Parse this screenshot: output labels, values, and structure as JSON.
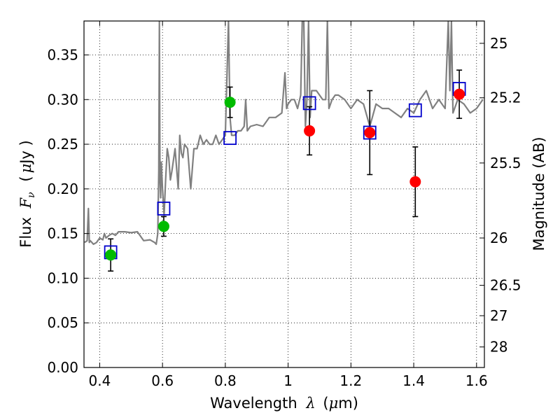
{
  "chart_data": {
    "type": "scatter",
    "title": "",
    "xlabel": {
      "prefix": "Wavelength",
      "symbol": "λ",
      "unit_open": "(",
      "unit_mu": "μ",
      "unit_rest": "m)"
    },
    "ylabel": {
      "prefix": "Flux",
      "symbol_main": "F",
      "symbol_sub": "ν",
      "unit_open": "(",
      "unit_mu": "μ",
      "unit_rest": "Jy )"
    },
    "y2label": "Magnitude (AB)",
    "xlim": [
      0.35,
      1.625
    ],
    "ylim": [
      0.0,
      0.388
    ],
    "grid": true,
    "x_ticks": [
      {
        "value": 0.4,
        "label": "0.4"
      },
      {
        "value": 0.6,
        "label": "0.6"
      },
      {
        "value": 0.8,
        "label": "0.8"
      },
      {
        "value": 1.0,
        "label": "1"
      },
      {
        "value": 1.2,
        "label": "1.2"
      },
      {
        "value": 1.4,
        "label": "1.4"
      },
      {
        "value": 1.6,
        "label": "1.6"
      }
    ],
    "y_ticks": [
      {
        "value": 0.0,
        "label": "0.00"
      },
      {
        "value": 0.05,
        "label": "0.05"
      },
      {
        "value": 0.1,
        "label": "0.10"
      },
      {
        "value": 0.15,
        "label": "0.15"
      },
      {
        "value": 0.2,
        "label": "0.20"
      },
      {
        "value": 0.25,
        "label": "0.25"
      },
      {
        "value": 0.3,
        "label": "0.30"
      },
      {
        "value": 0.35,
        "label": "0.35"
      }
    ],
    "y2_ticks": [
      {
        "flux": 0.363,
        "label": "25"
      },
      {
        "flux": 0.302,
        "label": "25.2"
      },
      {
        "flux": 0.229,
        "label": "25.5"
      },
      {
        "flux": 0.145,
        "label": "26"
      },
      {
        "flux": 0.092,
        "label": "26.5"
      },
      {
        "flux": 0.058,
        "label": "27"
      },
      {
        "flux": 0.023,
        "label": "28"
      }
    ],
    "series": [
      {
        "kind": "line",
        "color": "#808080",
        "x": [
          0.352,
          0.36,
          0.364,
          0.367,
          0.37,
          0.38,
          0.39,
          0.4,
          0.41,
          0.415,
          0.42,
          0.43,
          0.44,
          0.45,
          0.46,
          0.48,
          0.5,
          0.52,
          0.54,
          0.56,
          0.575,
          0.58,
          0.585,
          0.588,
          0.59,
          0.592,
          0.594,
          0.596,
          0.6,
          0.605,
          0.61,
          0.615,
          0.62,
          0.625,
          0.63,
          0.64,
          0.65,
          0.655,
          0.66,
          0.665,
          0.67,
          0.68,
          0.69,
          0.7,
          0.71,
          0.72,
          0.73,
          0.74,
          0.75,
          0.76,
          0.77,
          0.78,
          0.79,
          0.8,
          0.81,
          0.815,
          0.82,
          0.83,
          0.84,
          0.85,
          0.86,
          0.865,
          0.87,
          0.88,
          0.9,
          0.92,
          0.94,
          0.96,
          0.98,
          0.99,
          0.995,
          1.0,
          1.01,
          1.02,
          1.03,
          1.04,
          1.045,
          1.05,
          1.055,
          1.06,
          1.065,
          1.07,
          1.075,
          1.08,
          1.09,
          1.1,
          1.11,
          1.12,
          1.125,
          1.13,
          1.14,
          1.15,
          1.16,
          1.18,
          1.2,
          1.22,
          1.24,
          1.26,
          1.28,
          1.3,
          1.32,
          1.34,
          1.36,
          1.38,
          1.4,
          1.42,
          1.44,
          1.46,
          1.48,
          1.5,
          1.51,
          1.515,
          1.52,
          1.525,
          1.53,
          1.54,
          1.56,
          1.58,
          1.6,
          1.62
        ],
        "y": [
          0.14,
          0.142,
          0.178,
          0.14,
          0.142,
          0.138,
          0.14,
          0.145,
          0.143,
          0.15,
          0.145,
          0.148,
          0.15,
          0.148,
          0.152,
          0.152,
          0.151,
          0.152,
          0.142,
          0.143,
          0.14,
          0.138,
          0.15,
          0.22,
          0.388,
          0.21,
          0.19,
          0.23,
          0.2,
          0.17,
          0.21,
          0.245,
          0.235,
          0.21,
          0.22,
          0.245,
          0.2,
          0.26,
          0.24,
          0.235,
          0.25,
          0.245,
          0.2,
          0.245,
          0.245,
          0.26,
          0.25,
          0.255,
          0.25,
          0.25,
          0.26,
          0.25,
          0.255,
          0.26,
          0.388,
          0.28,
          0.26,
          0.26,
          0.265,
          0.265,
          0.27,
          0.3,
          0.265,
          0.27,
          0.272,
          0.27,
          0.28,
          0.28,
          0.285,
          0.33,
          0.29,
          0.295,
          0.3,
          0.3,
          0.29,
          0.305,
          0.388,
          0.388,
          0.27,
          0.3,
          0.388,
          0.28,
          0.31,
          0.31,
          0.31,
          0.305,
          0.3,
          0.3,
          0.388,
          0.29,
          0.3,
          0.305,
          0.305,
          0.3,
          0.29,
          0.3,
          0.295,
          0.27,
          0.295,
          0.29,
          0.29,
          0.285,
          0.28,
          0.29,
          0.285,
          0.3,
          0.31,
          0.29,
          0.3,
          0.29,
          0.388,
          0.31,
          0.388,
          0.285,
          0.29,
          0.3,
          0.295,
          0.285,
          0.29,
          0.3
        ]
      },
      {
        "kind": "open-square",
        "color": "#0000cc",
        "x": [
          0.435,
          0.604,
          0.815,
          1.068,
          1.26,
          1.405,
          1.545
        ],
        "y": [
          0.129,
          0.178,
          0.257,
          0.296,
          0.263,
          0.288,
          0.312
        ]
      },
      {
        "kind": "filled-circle",
        "color": "#00bb00",
        "x": [
          0.435,
          0.604,
          0.815
        ],
        "y": [
          0.126,
          0.158,
          0.297
        ],
        "yerr": [
          0.018,
          0.011,
          0.017
        ]
      },
      {
        "kind": "filled-circle",
        "color": "#ff0000",
        "x": [
          1.068,
          1.26,
          1.405,
          1.545
        ],
        "y": [
          0.265,
          0.263,
          0.208,
          0.306
        ],
        "yerr": [
          0.027,
          0.047,
          0.039,
          0.027
        ]
      }
    ]
  }
}
